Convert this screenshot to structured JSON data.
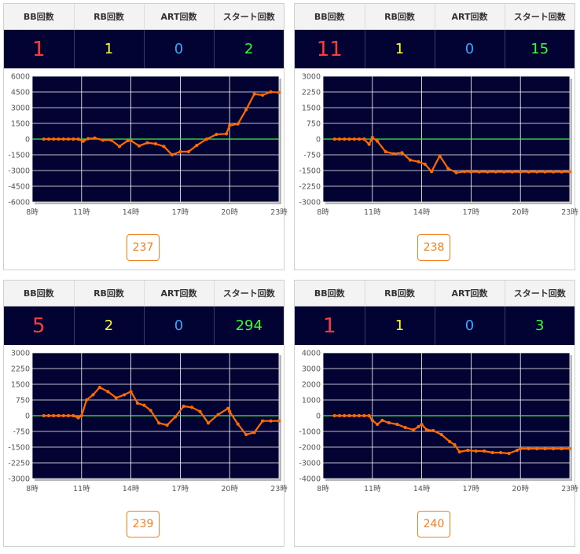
{
  "headers": {
    "bb": "BB回数",
    "rb": "RB回数",
    "art": "ART回数",
    "start": "スタート回数"
  },
  "colors": {
    "bb": "#ff3b3b",
    "rb": "#ffff33",
    "art": "#33aaff",
    "start": "#33ff33",
    "plot_bg": "#030333",
    "line": "#ff6a00",
    "zero_line": "#44ee44",
    "button": "#f08020"
  },
  "panels": [
    {
      "bb": "1",
      "rb": "1",
      "art": "0",
      "start": "2",
      "machine": "237",
      "chart_data": {
        "type": "line",
        "x_ticks": [
          "8時",
          "11時",
          "14時",
          "17時",
          "20時",
          "23時"
        ],
        "xlim": [
          8,
          23
        ],
        "ylim": [
          -6000,
          6000
        ],
        "y_ticks": [
          -6000,
          -4500,
          -3000,
          -1500,
          0,
          1500,
          3000,
          4500,
          6000
        ],
        "grid": true,
        "series": [
          {
            "x": [
              8.7,
              9.0,
              9.3,
              9.6,
              9.9,
              10.2,
              10.5,
              10.8,
              11.1,
              11.4,
              11.8,
              12.3,
              12.8,
              13.3,
              13.8,
              14.0,
              14.5,
              15.0,
              15.5,
              16.0,
              16.5,
              17.0,
              17.5,
              18.0,
              18.6,
              19.2,
              19.8,
              20.0,
              20.5,
              21.0,
              21.5,
              22.0,
              22.5,
              23.0
            ],
            "y": [
              0,
              0,
              0,
              0,
              0,
              0,
              0,
              0,
              -200,
              50,
              100,
              -100,
              -100,
              -700,
              -150,
              -150,
              -650,
              -350,
              -450,
              -700,
              -1500,
              -1200,
              -1200,
              -600,
              0,
              450,
              500,
              1300,
              1450,
              2800,
              4300,
              4200,
              4500,
              4450
            ]
          }
        ]
      }
    },
    {
      "bb": "11",
      "rb": "1",
      "art": "0",
      "start": "15",
      "machine": "238",
      "chart_data": {
        "type": "line",
        "x_ticks": [
          "8時",
          "11時",
          "14時",
          "17時",
          "20時",
          "23時"
        ],
        "xlim": [
          8,
          23
        ],
        "ylim": [
          -3000,
          3000
        ],
        "y_ticks": [
          -3000,
          -2250,
          -1500,
          -750,
          0,
          750,
          1500,
          2250,
          3000
        ],
        "grid": true,
        "series": [
          {
            "x": [
              8.7,
              9.0,
              9.3,
              9.6,
              9.9,
              10.2,
              10.5,
              10.8,
              11.0,
              11.3,
              11.8,
              12.3,
              12.8,
              13.3,
              13.8,
              14.2,
              14.6,
              15.1,
              15.6,
              16.1,
              16.6,
              17.0,
              17.5,
              18.0,
              18.5,
              19.0,
              19.5,
              20.0,
              20.5,
              21.0,
              21.5,
              22.0,
              22.5,
              23.0
            ],
            "y": [
              0,
              0,
              0,
              0,
              0,
              0,
              0,
              -250,
              80,
              -100,
              -600,
              -700,
              -650,
              -1000,
              -1080,
              -1200,
              -1550,
              -800,
              -1400,
              -1600,
              -1550,
              -1560,
              -1560,
              -1560,
              -1560,
              -1560,
              -1560,
              -1560,
              -1560,
              -1560,
              -1560,
              -1560,
              -1560,
              -1560
            ]
          }
        ]
      }
    },
    {
      "bb": "5",
      "rb": "2",
      "art": "0",
      "start": "294",
      "machine": "239",
      "chart_data": {
        "type": "line",
        "x_ticks": [
          "8時",
          "11時",
          "14時",
          "17時",
          "20時",
          "23時"
        ],
        "xlim": [
          8,
          23
        ],
        "ylim": [
          -3000,
          3000
        ],
        "y_ticks": [
          -3000,
          -2250,
          -1500,
          -750,
          0,
          750,
          1500,
          2250,
          3000
        ],
        "grid": true,
        "series": [
          {
            "x": [
              8.7,
              9.0,
              9.3,
              9.6,
              9.9,
              10.2,
              10.5,
              10.8,
              11.0,
              11.3,
              11.7,
              12.1,
              12.6,
              13.1,
              13.6,
              14.0,
              14.4,
              14.8,
              15.2,
              15.7,
              16.2,
              16.7,
              17.2,
              17.7,
              18.2,
              18.7,
              19.3,
              19.9,
              20.0,
              20.5,
              21.0,
              21.5,
              22.0,
              22.5,
              23.0
            ],
            "y": [
              0,
              0,
              0,
              0,
              0,
              0,
              0,
              -100,
              0,
              750,
              1000,
              1350,
              1150,
              850,
              1000,
              1150,
              600,
              500,
              250,
              -350,
              -450,
              -50,
              450,
              400,
              200,
              -350,
              50,
              350,
              200,
              -400,
              -900,
              -800,
              -250,
              -250,
              -250
            ]
          }
        ]
      }
    },
    {
      "bb": "1",
      "rb": "1",
      "art": "0",
      "start": "3",
      "machine": "240",
      "chart_data": {
        "type": "line",
        "x_ticks": [
          "8時",
          "11時",
          "14時",
          "17時",
          "20時",
          "23時"
        ],
        "xlim": [
          8,
          23
        ],
        "ylim": [
          -4000,
          4000
        ],
        "y_ticks": [
          -4000,
          -3000,
          -2000,
          -1000,
          0,
          1000,
          2000,
          3000,
          4000
        ],
        "grid": true,
        "series": [
          {
            "x": [
              8.7,
              9.0,
              9.3,
              9.6,
              9.9,
              10.2,
              10.5,
              10.8,
              11.0,
              11.3,
              11.6,
              12.0,
              12.5,
              13.0,
              13.5,
              13.8,
              14.0,
              14.3,
              14.7,
              15.2,
              15.7,
              16.0,
              16.3,
              16.8,
              17.3,
              17.8,
              18.3,
              18.8,
              19.3,
              19.8,
              20.0,
              20.5,
              21.0,
              21.5,
              22.0,
              22.5,
              23.0
            ],
            "y": [
              0,
              0,
              0,
              0,
              0,
              0,
              0,
              0,
              -300,
              -550,
              -300,
              -450,
              -550,
              -750,
              -900,
              -700,
              -550,
              -900,
              -950,
              -1200,
              -1650,
              -1850,
              -2300,
              -2200,
              -2250,
              -2250,
              -2350,
              -2350,
              -2400,
              -2200,
              -2100,
              -2100,
              -2100,
              -2100,
              -2100,
              -2100,
              -2100
            ]
          }
        ]
      }
    }
  ]
}
